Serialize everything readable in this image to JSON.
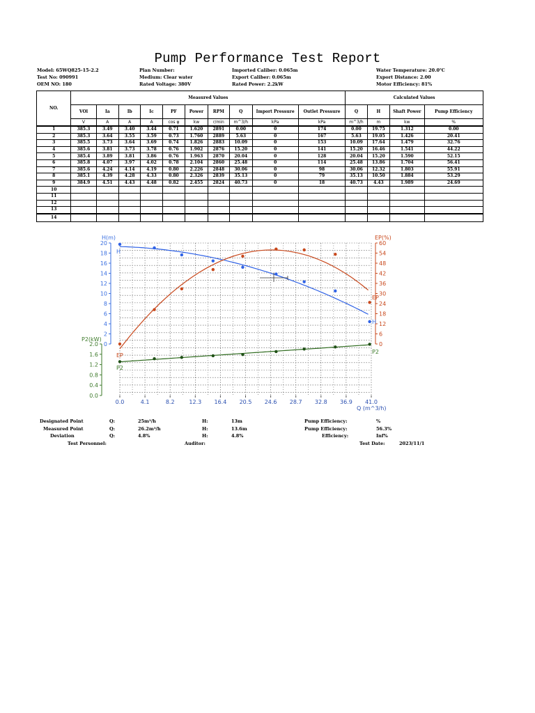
{
  "title": "Pump Performance Test Report",
  "meta": {
    "model": "Model: 65WQ825-15-2.2",
    "test_no": "Test No: 090991",
    "oem_no": "OEM NO: 180",
    "plan_number": "Plan Number:",
    "medium": "Medium: Clear water",
    "rated_voltage": "Rated Voltage: 380V",
    "imported_caliber": "Imported Caliber: 0.065m",
    "export_caliber": "Export Caliber: 0.065m",
    "rated_power": "Rated Power: 2.2kW",
    "water_temperature": "Water Temperature: 20.0℃",
    "export_distance": "Export Distance: 2.00",
    "motor_efficiency": "Motor Efficiency: 81%"
  },
  "table": {
    "no_label": "NO.",
    "measured_label": "Measured Values",
    "calculated_label": "Calculated Values",
    "columns": [
      "VOl",
      "Ia",
      "Ib",
      "Ic",
      "PF",
      "Power",
      "RPM",
      "Q",
      "Import Pressure",
      "Outlet Pressure",
      "Q",
      "H",
      "Shaft Power",
      "Pump Efficiency"
    ],
    "units": [
      "V",
      "A",
      "A",
      "A",
      "cos φ",
      "kw",
      "r/min",
      "m^3/h",
      "kPa",
      "kPa",
      "m^3/h",
      "m",
      "kw",
      "%"
    ],
    "rows": [
      [
        "1",
        "385.3",
        "3.49",
        "3.40",
        "3.44",
        "0.71",
        "1.620",
        "2891",
        "0.00",
        "0",
        "174",
        "0.00",
        "19.75",
        "1.312",
        "0.00"
      ],
      [
        "2",
        "385.3",
        "3.64",
        "3.55",
        "3.59",
        "0.73",
        "1.760",
        "2889",
        "5.63",
        "0",
        "167",
        "5.63",
        "19.05",
        "1.426",
        "20.41"
      ],
      [
        "3",
        "385.5",
        "3.73",
        "3.64",
        "3.69",
        "0.74",
        "1.826",
        "2883",
        "10.09",
        "0",
        "153",
        "10.09",
        "17.64",
        "1.479",
        "32.76"
      ],
      [
        "4",
        "385.6",
        "3.81",
        "3.73",
        "3.78",
        "0.76",
        "1.902",
        "2876",
        "15.20",
        "0",
        "141",
        "15.20",
        "16.46",
        "1.541",
        "44.22"
      ],
      [
        "5",
        "385.4",
        "3.89",
        "3.81",
        "3.86",
        "0.76",
        "1.963",
        "2870",
        "20.04",
        "0",
        "128",
        "20.04",
        "15.20",
        "1.590",
        "52.15"
      ],
      [
        "6",
        "385.8",
        "4.07",
        "3.97",
        "4.02",
        "0.78",
        "2.104",
        "2860",
        "25.48",
        "0",
        "114",
        "25.48",
        "13.86",
        "1.704",
        "56.41"
      ],
      [
        "7",
        "385.6",
        "4.24",
        "4.14",
        "4.19",
        "0.80",
        "2.226",
        "2848",
        "30.06",
        "0",
        "98",
        "30.06",
        "12.32",
        "1.803",
        "55.91"
      ],
      [
        "8",
        "385.1",
        "4.39",
        "4.28",
        "4.33",
        "0.80",
        "2.326",
        "2839",
        "35.13",
        "0",
        "79",
        "35.13",
        "10.50",
        "1.884",
        "53.29"
      ],
      [
        "9",
        "384.9",
        "4.51",
        "4.43",
        "4.48",
        "0.82",
        "2.455",
        "2824",
        "40.73",
        "0",
        "18",
        "40.73",
        "4.43",
        "1.989",
        "24.69"
      ],
      [
        "10",
        "",
        "",
        "",
        "",
        "",
        "",
        "",
        "",
        "",
        "",
        "",
        "",
        "",
        ""
      ],
      [
        "11",
        "",
        "",
        "",
        "",
        "",
        "",
        "",
        "",
        "",
        "",
        "",
        "",
        "",
        ""
      ],
      [
        "12",
        "",
        "",
        "",
        "",
        "",
        "",
        "",
        "",
        "",
        "",
        "",
        "",
        "",
        ""
      ],
      [
        "13",
        "",
        "",
        "",
        "",
        "",
        "",
        "",
        "",
        "",
        "",
        "",
        "",
        "",
        ""
      ],
      [
        "14",
        "",
        "",
        "",
        "",
        "",
        "",
        "",
        "",
        "",
        "",
        "",
        "",
        "",
        ""
      ]
    ]
  },
  "chart_data": {
    "type": "line",
    "title": "",
    "xlabel": "Q (m^3/h)",
    "x_ticks": [
      "0.0",
      "4.1",
      "8.2",
      "12.3",
      "16.4",
      "20.5",
      "24.6",
      "28.7",
      "32.8",
      "36.9",
      "41.0"
    ],
    "xlim": [
      0,
      41
    ],
    "axes": [
      {
        "name": "H(m)",
        "side": "left",
        "ylim": [
          0,
          20
        ],
        "ticks": [
          "0",
          "2",
          "4",
          "6",
          "8",
          "10",
          "12",
          "14",
          "16",
          "18",
          "20"
        ],
        "color": "#3a6fe0"
      },
      {
        "name": "P2(kW)",
        "side": "left",
        "ylim": [
          0,
          2.0
        ],
        "ticks": [
          "0.0",
          "0.4",
          "0.8",
          "1.2",
          "1.6",
          "2.0"
        ],
        "color": "#3d7a2a"
      },
      {
        "name": "EP(%)",
        "side": "right",
        "ylim": [
          0,
          60
        ],
        "ticks": [
          "0",
          "6",
          "12",
          "18",
          "24",
          "30",
          "36",
          "42",
          "48",
          "54",
          "60"
        ],
        "color": "#c8481c"
      }
    ],
    "series": [
      {
        "name": "H",
        "color": "#2f62e6",
        "x": [
          0.0,
          5.63,
          10.09,
          15.2,
          20.04,
          25.48,
          30.06,
          35.13,
          40.73
        ],
        "values": [
          19.75,
          19.05,
          17.64,
          16.46,
          15.2,
          13.86,
          12.32,
          10.5,
          4.43
        ]
      },
      {
        "name": "EP",
        "color": "#c8481c",
        "x": [
          0.0,
          5.63,
          10.09,
          15.2,
          20.04,
          25.48,
          30.06,
          35.13,
          40.73
        ],
        "values": [
          0.0,
          20.41,
          32.76,
          44.22,
          52.15,
          56.41,
          55.91,
          53.29,
          24.69
        ]
      },
      {
        "name": "P2",
        "color": "#2f6b1f",
        "x": [
          0.0,
          5.63,
          10.09,
          15.2,
          20.04,
          25.48,
          30.06,
          35.13,
          40.73
        ],
        "values": [
          1.312,
          1.426,
          1.479,
          1.541,
          1.59,
          1.704,
          1.803,
          1.884,
          1.989
        ]
      }
    ],
    "annotations": [
      "Design point cross marker at Q≈25.5, H≈13.2"
    ],
    "grid": true,
    "legend_position": "inline labels at curve ends"
  },
  "footer": {
    "designated_label": "Designated Point",
    "measured_label": "Measured Point",
    "deviation_label": "Deviation",
    "q_label": "Q:",
    "h_label": "H:",
    "designated_q": "25m³/h",
    "measured_q": "26.2m³/h",
    "deviation_q": "4.8%",
    "designated_h": "13m",
    "measured_h": "13.6m",
    "deviation_h": "4.8%",
    "pump_eff_label": "Pump Efficiency:",
    "efficiency_label": "Efficiency:",
    "designated_eff": "%",
    "measured_eff": "56.3%",
    "deviation_eff": "Inf%",
    "test_personnel": "Test Personnel:",
    "auditor": "Auditor:",
    "test_date_label": "Test Date:",
    "test_date": "2023/11/1"
  }
}
